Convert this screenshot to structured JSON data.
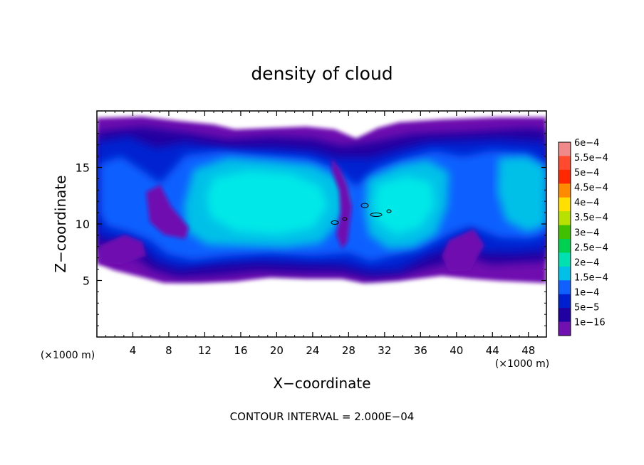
{
  "chart_data": {
    "type": "heatmap",
    "title": "density of cloud",
    "xlabel": "X−coordinate",
    "ylabel": "Z−coordinate",
    "x_unit_left": "(×1000 m)",
    "x_unit_right": "(×1000 m)",
    "xlim": [
      0,
      50
    ],
    "ylim": [
      0,
      20
    ],
    "x_ticks": [
      4,
      8,
      12,
      16,
      20,
      24,
      28,
      32,
      36,
      40,
      44,
      48
    ],
    "y_ticks": [
      5,
      10,
      15
    ],
    "colorbar": {
      "labels": [
        "6e−4",
        "5.5e−4",
        "5e−4",
        "4.5e−4",
        "4e−4",
        "3.5e−4",
        "3e−4",
        "2.5e−4",
        "2e−4",
        "1.5e−4",
        "1e−4",
        "5e−5",
        "1e−16"
      ],
      "colors": [
        "#f08a8a",
        "#ff4a30",
        "#ff2800",
        "#ff8c00",
        "#ffe000",
        "#b8e000",
        "#40c000",
        "#00d050",
        "#00e0b0",
        "#00c0e8",
        "#1060ff",
        "#0020d0",
        "#2000a0",
        "#7010b0"
      ]
    },
    "footer": "CONTOUR INTERVAL = 2.000E−04",
    "field_colors": {
      "level0": "#7010b0",
      "level1": "#2000a0",
      "level2": "#0020d0",
      "level3": "#1060ff",
      "level4": "#00c0e8",
      "level5": "#00e8e8"
    }
  }
}
